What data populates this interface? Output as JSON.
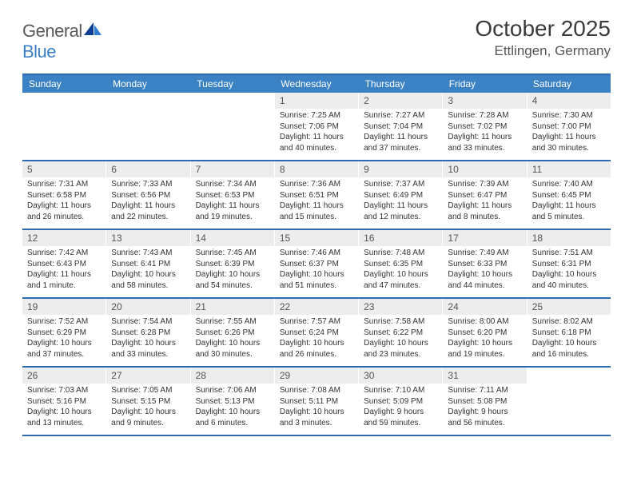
{
  "brand": {
    "word1": "General",
    "word2": "Blue"
  },
  "title": "October 2025",
  "location": "Ettlingen, Germany",
  "dow": [
    "Sunday",
    "Monday",
    "Tuesday",
    "Wednesday",
    "Thursday",
    "Friday",
    "Saturday"
  ],
  "colors": {
    "header_bar": "#3b82c4",
    "rule": "#2e6ab1",
    "daynum_bg": "#ededed",
    "text": "#333333",
    "logo_gray": "#5a5a5a",
    "logo_blue": "#3b7fc4"
  },
  "weeks": [
    [
      {
        "n": "",
        "sr": "",
        "ss": "",
        "dl": ""
      },
      {
        "n": "",
        "sr": "",
        "ss": "",
        "dl": ""
      },
      {
        "n": "",
        "sr": "",
        "ss": "",
        "dl": ""
      },
      {
        "n": "1",
        "sr": "Sunrise: 7:25 AM",
        "ss": "Sunset: 7:06 PM",
        "dl": "Daylight: 11 hours and 40 minutes."
      },
      {
        "n": "2",
        "sr": "Sunrise: 7:27 AM",
        "ss": "Sunset: 7:04 PM",
        "dl": "Daylight: 11 hours and 37 minutes."
      },
      {
        "n": "3",
        "sr": "Sunrise: 7:28 AM",
        "ss": "Sunset: 7:02 PM",
        "dl": "Daylight: 11 hours and 33 minutes."
      },
      {
        "n": "4",
        "sr": "Sunrise: 7:30 AM",
        "ss": "Sunset: 7:00 PM",
        "dl": "Daylight: 11 hours and 30 minutes."
      }
    ],
    [
      {
        "n": "5",
        "sr": "Sunrise: 7:31 AM",
        "ss": "Sunset: 6:58 PM",
        "dl": "Daylight: 11 hours and 26 minutes."
      },
      {
        "n": "6",
        "sr": "Sunrise: 7:33 AM",
        "ss": "Sunset: 6:56 PM",
        "dl": "Daylight: 11 hours and 22 minutes."
      },
      {
        "n": "7",
        "sr": "Sunrise: 7:34 AM",
        "ss": "Sunset: 6:53 PM",
        "dl": "Daylight: 11 hours and 19 minutes."
      },
      {
        "n": "8",
        "sr": "Sunrise: 7:36 AM",
        "ss": "Sunset: 6:51 PM",
        "dl": "Daylight: 11 hours and 15 minutes."
      },
      {
        "n": "9",
        "sr": "Sunrise: 7:37 AM",
        "ss": "Sunset: 6:49 PM",
        "dl": "Daylight: 11 hours and 12 minutes."
      },
      {
        "n": "10",
        "sr": "Sunrise: 7:39 AM",
        "ss": "Sunset: 6:47 PM",
        "dl": "Daylight: 11 hours and 8 minutes."
      },
      {
        "n": "11",
        "sr": "Sunrise: 7:40 AM",
        "ss": "Sunset: 6:45 PM",
        "dl": "Daylight: 11 hours and 5 minutes."
      }
    ],
    [
      {
        "n": "12",
        "sr": "Sunrise: 7:42 AM",
        "ss": "Sunset: 6:43 PM",
        "dl": "Daylight: 11 hours and 1 minute."
      },
      {
        "n": "13",
        "sr": "Sunrise: 7:43 AM",
        "ss": "Sunset: 6:41 PM",
        "dl": "Daylight: 10 hours and 58 minutes."
      },
      {
        "n": "14",
        "sr": "Sunrise: 7:45 AM",
        "ss": "Sunset: 6:39 PM",
        "dl": "Daylight: 10 hours and 54 minutes."
      },
      {
        "n": "15",
        "sr": "Sunrise: 7:46 AM",
        "ss": "Sunset: 6:37 PM",
        "dl": "Daylight: 10 hours and 51 minutes."
      },
      {
        "n": "16",
        "sr": "Sunrise: 7:48 AM",
        "ss": "Sunset: 6:35 PM",
        "dl": "Daylight: 10 hours and 47 minutes."
      },
      {
        "n": "17",
        "sr": "Sunrise: 7:49 AM",
        "ss": "Sunset: 6:33 PM",
        "dl": "Daylight: 10 hours and 44 minutes."
      },
      {
        "n": "18",
        "sr": "Sunrise: 7:51 AM",
        "ss": "Sunset: 6:31 PM",
        "dl": "Daylight: 10 hours and 40 minutes."
      }
    ],
    [
      {
        "n": "19",
        "sr": "Sunrise: 7:52 AM",
        "ss": "Sunset: 6:29 PM",
        "dl": "Daylight: 10 hours and 37 minutes."
      },
      {
        "n": "20",
        "sr": "Sunrise: 7:54 AM",
        "ss": "Sunset: 6:28 PM",
        "dl": "Daylight: 10 hours and 33 minutes."
      },
      {
        "n": "21",
        "sr": "Sunrise: 7:55 AM",
        "ss": "Sunset: 6:26 PM",
        "dl": "Daylight: 10 hours and 30 minutes."
      },
      {
        "n": "22",
        "sr": "Sunrise: 7:57 AM",
        "ss": "Sunset: 6:24 PM",
        "dl": "Daylight: 10 hours and 26 minutes."
      },
      {
        "n": "23",
        "sr": "Sunrise: 7:58 AM",
        "ss": "Sunset: 6:22 PM",
        "dl": "Daylight: 10 hours and 23 minutes."
      },
      {
        "n": "24",
        "sr": "Sunrise: 8:00 AM",
        "ss": "Sunset: 6:20 PM",
        "dl": "Daylight: 10 hours and 19 minutes."
      },
      {
        "n": "25",
        "sr": "Sunrise: 8:02 AM",
        "ss": "Sunset: 6:18 PM",
        "dl": "Daylight: 10 hours and 16 minutes."
      }
    ],
    [
      {
        "n": "26",
        "sr": "Sunrise: 7:03 AM",
        "ss": "Sunset: 5:16 PM",
        "dl": "Daylight: 10 hours and 13 minutes."
      },
      {
        "n": "27",
        "sr": "Sunrise: 7:05 AM",
        "ss": "Sunset: 5:15 PM",
        "dl": "Daylight: 10 hours and 9 minutes."
      },
      {
        "n": "28",
        "sr": "Sunrise: 7:06 AM",
        "ss": "Sunset: 5:13 PM",
        "dl": "Daylight: 10 hours and 6 minutes."
      },
      {
        "n": "29",
        "sr": "Sunrise: 7:08 AM",
        "ss": "Sunset: 5:11 PM",
        "dl": "Daylight: 10 hours and 3 minutes."
      },
      {
        "n": "30",
        "sr": "Sunrise: 7:10 AM",
        "ss": "Sunset: 5:09 PM",
        "dl": "Daylight: 9 hours and 59 minutes."
      },
      {
        "n": "31",
        "sr": "Sunrise: 7:11 AM",
        "ss": "Sunset: 5:08 PM",
        "dl": "Daylight: 9 hours and 56 minutes."
      },
      {
        "n": "",
        "sr": "",
        "ss": "",
        "dl": ""
      }
    ]
  ]
}
